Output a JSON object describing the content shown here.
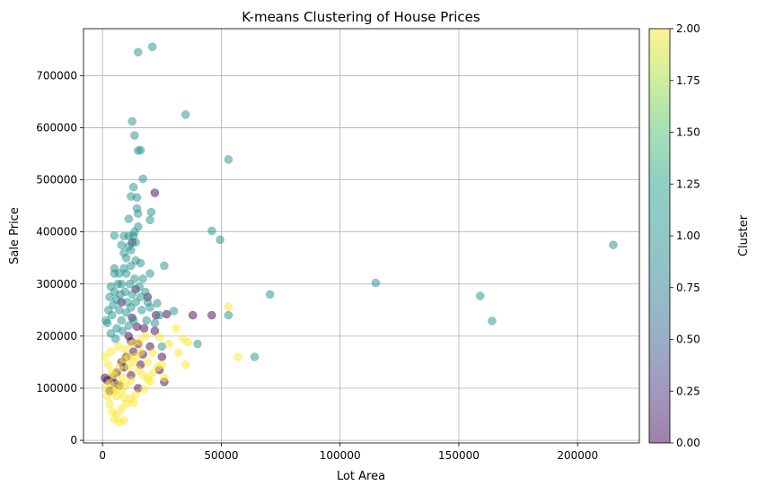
{
  "chart_data": {
    "type": "scatter",
    "title": "K-means Clustering of House Prices",
    "xlabel": "Lot Area",
    "ylabel": "Sale Price",
    "xlim": [
      -8000,
      226000
    ],
    "ylim": [
      -5000,
      790000
    ],
    "grid": true,
    "x_ticks": [
      0,
      50000,
      100000,
      150000,
      200000
    ],
    "x_tick_labels": [
      "0",
      "50000",
      "100000",
      "150000",
      "200000"
    ],
    "y_ticks": [
      0,
      100000,
      200000,
      300000,
      400000,
      500000,
      600000,
      700000
    ],
    "y_tick_labels": [
      "0",
      "100000",
      "200000",
      "300000",
      "400000",
      "500000",
      "600000",
      "700000"
    ],
    "colorbar": {
      "label": "Cluster",
      "range": [
        0,
        2
      ],
      "ticks": [
        0,
        0.25,
        0.5,
        0.75,
        1,
        1.25,
        1.5,
        1.75,
        2
      ],
      "tick_labels": [
        "0.00",
        "0.25",
        "0.50",
        "0.75",
        "1.00",
        "1.25",
        "1.50",
        "1.75",
        "2.00"
      ]
    },
    "cluster_colors": [
      "#440154",
      "#21918c",
      "#fde725"
    ],
    "point_alpha": 0.5,
    "series": [
      {
        "cluster": 0,
        "points": [
          [
            22000,
            475000
          ],
          [
            12500,
            380000
          ],
          [
            14000,
            290000
          ],
          [
            19000,
            275000
          ],
          [
            22500,
            240000
          ],
          [
            27000,
            242000
          ],
          [
            38000,
            240000
          ],
          [
            46000,
            240000
          ],
          [
            8000,
            265000
          ],
          [
            12500,
            235000
          ],
          [
            14500,
            218000
          ],
          [
            17500,
            215000
          ],
          [
            22000,
            210000
          ],
          [
            12000,
            190000
          ],
          [
            15000,
            185000
          ],
          [
            17000,
            165000
          ],
          [
            20000,
            180000
          ],
          [
            25000,
            160000
          ],
          [
            10000,
            160000
          ],
          [
            8000,
            150000
          ],
          [
            6000,
            130000
          ],
          [
            4000,
            120000
          ],
          [
            2000,
            115000
          ],
          [
            7000,
            105000
          ],
          [
            3000,
            95000
          ],
          [
            9000,
            140000
          ],
          [
            11000,
            200000
          ],
          [
            13000,
            170000
          ],
          [
            16000,
            145000
          ],
          [
            24000,
            135000
          ],
          [
            26000,
            112000
          ],
          [
            5000,
            110000
          ],
          [
            12000,
            125000
          ],
          [
            15000,
            100000
          ],
          [
            1000,
            120000
          ]
        ]
      },
      {
        "cluster": 1,
        "points": [
          [
            15000,
            745000
          ],
          [
            21000,
            755000
          ],
          [
            35000,
            625000
          ],
          [
            12500,
            612000
          ],
          [
            13500,
            585000
          ],
          [
            15000,
            556000
          ],
          [
            16000,
            557000
          ],
          [
            53000,
            539000
          ],
          [
            17000,
            502000
          ],
          [
            13000,
            486000
          ],
          [
            12000,
            468000
          ],
          [
            14500,
            466000
          ],
          [
            14500,
            445000
          ],
          [
            15000,
            435000
          ],
          [
            20500,
            438000
          ],
          [
            20000,
            423000
          ],
          [
            11000,
            425000
          ],
          [
            46000,
            402000
          ],
          [
            49500,
            385000
          ],
          [
            5000,
            393000
          ],
          [
            9000,
            392000
          ],
          [
            11000,
            392000
          ],
          [
            13000,
            392000
          ],
          [
            215000,
            375000
          ],
          [
            26000,
            335000
          ],
          [
            20000,
            320000
          ],
          [
            5000,
            330000
          ],
          [
            70500,
            280000
          ],
          [
            115000,
            302000
          ],
          [
            159000,
            277000
          ],
          [
            164000,
            229000
          ],
          [
            53000,
            240000
          ],
          [
            64000,
            160000
          ],
          [
            40000,
            185000
          ],
          [
            25000,
            180000
          ],
          [
            30000,
            248000
          ],
          [
            23000,
            263000
          ],
          [
            5000,
            285000
          ],
          [
            3000,
            275000
          ],
          [
            6000,
            270000
          ],
          [
            8000,
            300000
          ],
          [
            10000,
            320000
          ],
          [
            12000,
            335000
          ],
          [
            14000,
            345000
          ],
          [
            9000,
            360000
          ],
          [
            11000,
            372000
          ],
          [
            13500,
            400000
          ],
          [
            15000,
            410000
          ],
          [
            7000,
            250000
          ],
          [
            4000,
            240000
          ],
          [
            2000,
            225000
          ],
          [
            6000,
            215000
          ],
          [
            8000,
            230000
          ],
          [
            10000,
            245000
          ],
          [
            12000,
            255000
          ],
          [
            14000,
            265000
          ],
          [
            16000,
            275000
          ],
          [
            18000,
            285000
          ],
          [
            9500,
            285000
          ],
          [
            11500,
            300000
          ],
          [
            13500,
            310000
          ],
          [
            15500,
            295000
          ],
          [
            7500,
            280000
          ],
          [
            10500,
            265000
          ],
          [
            12500,
            280000
          ],
          [
            16500,
            250000
          ],
          [
            18500,
            230000
          ],
          [
            3500,
            205000
          ],
          [
            5500,
            195000
          ],
          [
            8500,
            210000
          ],
          [
            11000,
            220000
          ],
          [
            13000,
            230000
          ],
          [
            6500,
            300000
          ],
          [
            9000,
            330000
          ],
          [
            10000,
            350000
          ],
          [
            12000,
            365000
          ],
          [
            8000,
            375000
          ],
          [
            14000,
            380000
          ],
          [
            16000,
            340000
          ],
          [
            4500,
            260000
          ],
          [
            2500,
            250000
          ],
          [
            1500,
            230000
          ],
          [
            17000,
            310000
          ],
          [
            19000,
            265000
          ],
          [
            20000,
            255000
          ],
          [
            22000,
            225000
          ],
          [
            24000,
            240000
          ],
          [
            5000,
            320000
          ],
          [
            7000,
            320000
          ],
          [
            3500,
            295000
          ]
        ]
      },
      {
        "cluster": 2,
        "points": [
          [
            53000,
            256000
          ],
          [
            57000,
            160000
          ],
          [
            31000,
            215000
          ],
          [
            34000,
            195000
          ],
          [
            36000,
            188000
          ],
          [
            32000,
            168000
          ],
          [
            35000,
            145000
          ],
          [
            28000,
            185000
          ],
          [
            24000,
            198000
          ],
          [
            21000,
            168000
          ],
          [
            19000,
            150000
          ],
          [
            20000,
            113000
          ],
          [
            17500,
            98000
          ],
          [
            14000,
            88000
          ],
          [
            12000,
            80000
          ],
          [
            10000,
            70000
          ],
          [
            8000,
            60000
          ],
          [
            6000,
            50000
          ],
          [
            5000,
            40000
          ],
          [
            7000,
            35000
          ],
          [
            9000,
            38000
          ],
          [
            4000,
            55000
          ],
          [
            3000,
            70000
          ],
          [
            2000,
            85000
          ],
          [
            1500,
            100000
          ],
          [
            3000,
            110000
          ],
          [
            5000,
            125000
          ],
          [
            7000,
            140000
          ],
          [
            9000,
            155000
          ],
          [
            11000,
            160000
          ],
          [
            13000,
            150000
          ],
          [
            15000,
            135000
          ],
          [
            17000,
            125000
          ],
          [
            19000,
            118000
          ],
          [
            21000,
            128000
          ],
          [
            23000,
            140000
          ],
          [
            25000,
            145000
          ],
          [
            26000,
            120000
          ],
          [
            8000,
            95000
          ],
          [
            10000,
            105000
          ],
          [
            12000,
            115000
          ],
          [
            6000,
            85000
          ],
          [
            4000,
            130000
          ],
          [
            2500,
            145000
          ],
          [
            1000,
            160000
          ],
          [
            3500,
            170000
          ],
          [
            6500,
            180000
          ],
          [
            9500,
            175000
          ],
          [
            12500,
            185000
          ],
          [
            15500,
            190000
          ],
          [
            18000,
            200000
          ],
          [
            16000,
            170000
          ],
          [
            14000,
            160000
          ],
          [
            11000,
            140000
          ],
          [
            8500,
            120000
          ],
          [
            7500,
            108000
          ],
          [
            5500,
            100000
          ],
          [
            4500,
            92000
          ],
          [
            9000,
            82000
          ],
          [
            13000,
            72000
          ]
        ]
      }
    ]
  }
}
